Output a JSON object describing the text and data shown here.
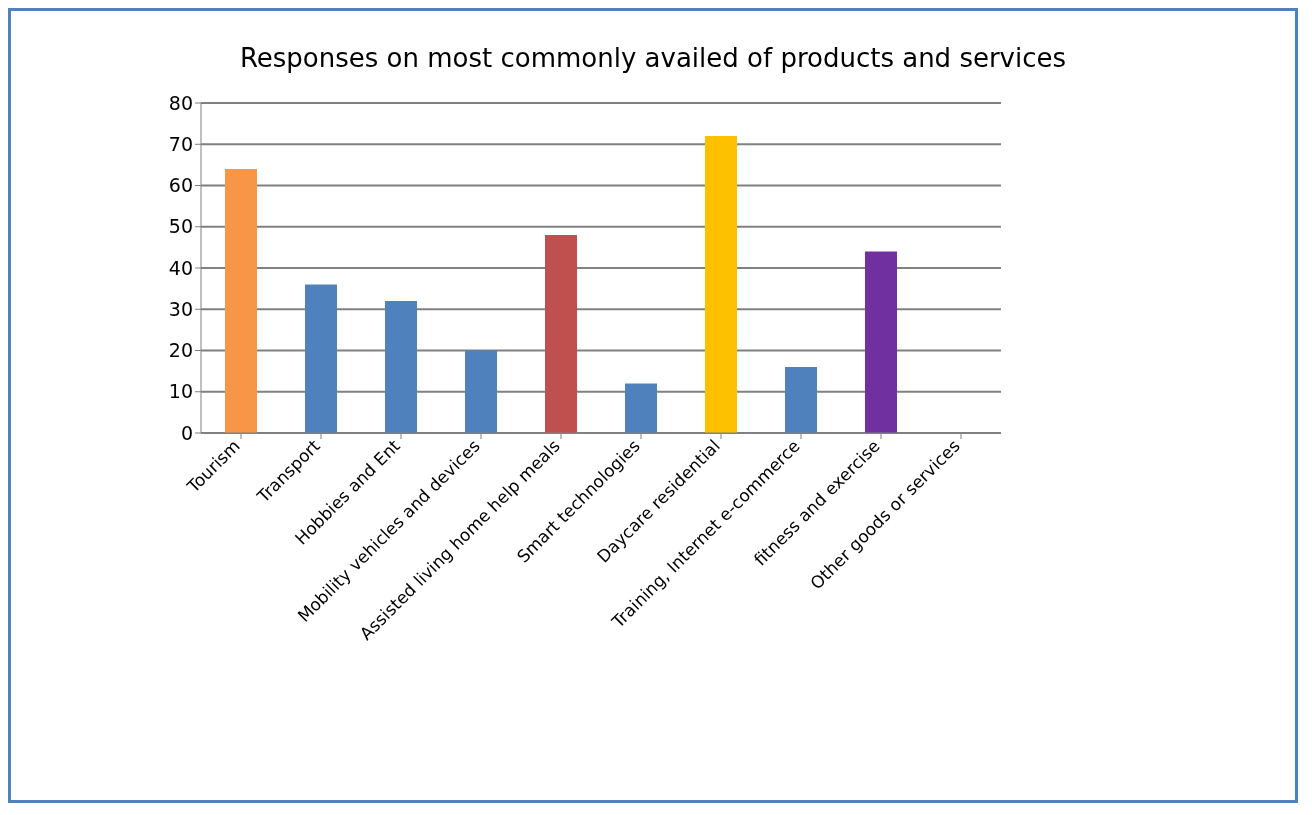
{
  "chart_data": {
    "type": "bar",
    "title": "Responses on most commonly availed of products and services",
    "categories": [
      "Tourism",
      "Transport",
      "Hobbies and Ent",
      "Mobility vehicles and devices",
      "Assisted living home help meals",
      "Smart technologies",
      "Daycare residential",
      "Training, Internet  e-commerce",
      "fitness and exercise",
      "Other goods or services"
    ],
    "values": [
      64,
      36,
      32,
      20,
      48,
      12,
      72,
      16,
      44,
      0
    ],
    "colors": [
      "#f79646",
      "#4f81bd",
      "#4f81bd",
      "#4f81bd",
      "#c0504d",
      "#4f81bd",
      "#ffc000",
      "#4f81bd",
      "#7030a0",
      "#4f81bd"
    ],
    "ylim": [
      0,
      80
    ],
    "yticks": [
      0,
      10,
      20,
      30,
      40,
      50,
      60,
      70,
      80
    ],
    "grid": "y"
  }
}
